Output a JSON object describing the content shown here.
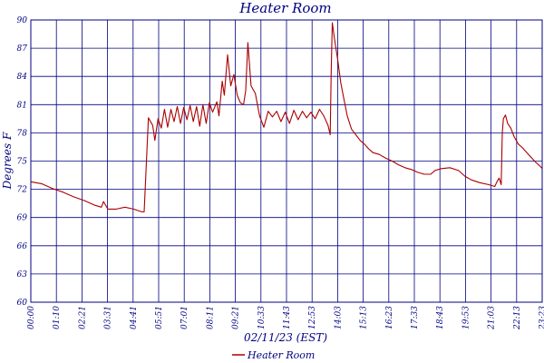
{
  "chart_data": {
    "type": "line",
    "title": "Heater Room",
    "xlabel": "02/11/23 (EST)",
    "ylabel": "Degrees F",
    "ylim": [
      60,
      90
    ],
    "yticks": [
      60,
      63,
      66,
      69,
      72,
      75,
      78,
      81,
      84,
      87,
      90
    ],
    "xlim_hours": [
      0,
      23.916
    ],
    "x_tick_labels": [
      "00:00",
      "01:10",
      "02:21",
      "03:31",
      "04:41",
      "05:51",
      "07:01",
      "08:11",
      "09:21",
      "10:33",
      "11:43",
      "12:53",
      "14:03",
      "15:13",
      "16:23",
      "17:33",
      "18:43",
      "19:53",
      "21:03",
      "22:13",
      "23:23"
    ],
    "grid": true,
    "legend_position": "bottom-center",
    "colors": {
      "series": "#aa0000",
      "grid": "#000080",
      "text": "#000080"
    },
    "series": [
      {
        "name": "Heater Room",
        "x_hours": [
          0,
          0.5,
          1,
          1.5,
          2,
          2.5,
          3,
          3.3,
          3.4,
          3.6,
          4,
          4.4,
          4.8,
          5.2,
          5.3,
          5.4,
          5.5,
          5.7,
          5.8,
          5.95,
          6.1,
          6.25,
          6.4,
          6.55,
          6.7,
          6.85,
          7.0,
          7.15,
          7.3,
          7.45,
          7.6,
          7.75,
          7.9,
          8.05,
          8.2,
          8.35,
          8.5,
          8.7,
          8.8,
          8.95,
          9.05,
          9.2,
          9.35,
          9.5,
          9.65,
          9.8,
          9.95,
          10.05,
          10.15,
          10.3,
          10.5,
          10.7,
          10.9,
          11.1,
          11.3,
          11.5,
          11.7,
          11.9,
          12.1,
          12.3,
          12.5,
          12.7,
          12.9,
          13.1,
          13.3,
          13.5,
          13.7,
          13.9,
          14.0,
          14.05,
          14.1,
          14.2,
          14.35,
          14.5,
          14.65,
          14.8,
          15.0,
          15.2,
          15.4,
          15.6,
          15.8,
          16.0,
          16.3,
          16.6,
          16.9,
          17.2,
          17.5,
          17.8,
          18.1,
          18.4,
          18.7,
          18.9,
          19.2,
          19.6,
          20.0,
          20.3,
          20.6,
          21.0,
          21.4,
          21.7,
          21.8,
          21.9,
          22.0,
          22.05,
          22.1,
          22.2,
          22.3,
          22.45,
          22.6,
          22.8,
          23.0,
          23.2,
          23.4,
          23.6,
          23.8,
          23.916
        ],
        "y": [
          72.8,
          72.6,
          72.1,
          71.7,
          71.2,
          70.8,
          70.3,
          70.1,
          70.7,
          69.9,
          69.9,
          70.1,
          69.9,
          69.6,
          69.6,
          74.5,
          79.6,
          78.8,
          77.2,
          79.5,
          78.5,
          80.5,
          78.6,
          80.5,
          79.2,
          80.8,
          79.0,
          80.7,
          79.4,
          80.9,
          79.2,
          80.8,
          78.7,
          81.0,
          79.0,
          81.2,
          80.2,
          81.3,
          79.8,
          83.5,
          82.0,
          86.3,
          83.0,
          84.2,
          82.0,
          81.2,
          81.0,
          82.5,
          87.6,
          83.0,
          82.2,
          79.8,
          78.6,
          80.3,
          79.7,
          80.3,
          79.2,
          80.2,
          79.0,
          80.4,
          79.4,
          80.3,
          79.6,
          80.2,
          79.5,
          80.5,
          79.8,
          78.8,
          77.8,
          84.5,
          89.7,
          88.0,
          85.8,
          83.3,
          81.5,
          79.8,
          78.4,
          77.8,
          77.2,
          76.8,
          76.3,
          75.9,
          75.7,
          75.3,
          75.0,
          74.6,
          74.3,
          74.1,
          73.8,
          73.6,
          73.6,
          74.0,
          74.2,
          74.3,
          74.0,
          73.4,
          73.0,
          72.7,
          72.5,
          72.3,
          72.8,
          73.2,
          72.5,
          78.0,
          79.5,
          79.9,
          79.0,
          78.5,
          77.6,
          76.8,
          76.4,
          75.9,
          75.4,
          74.9,
          74.5,
          74.2
        ]
      }
    ]
  }
}
